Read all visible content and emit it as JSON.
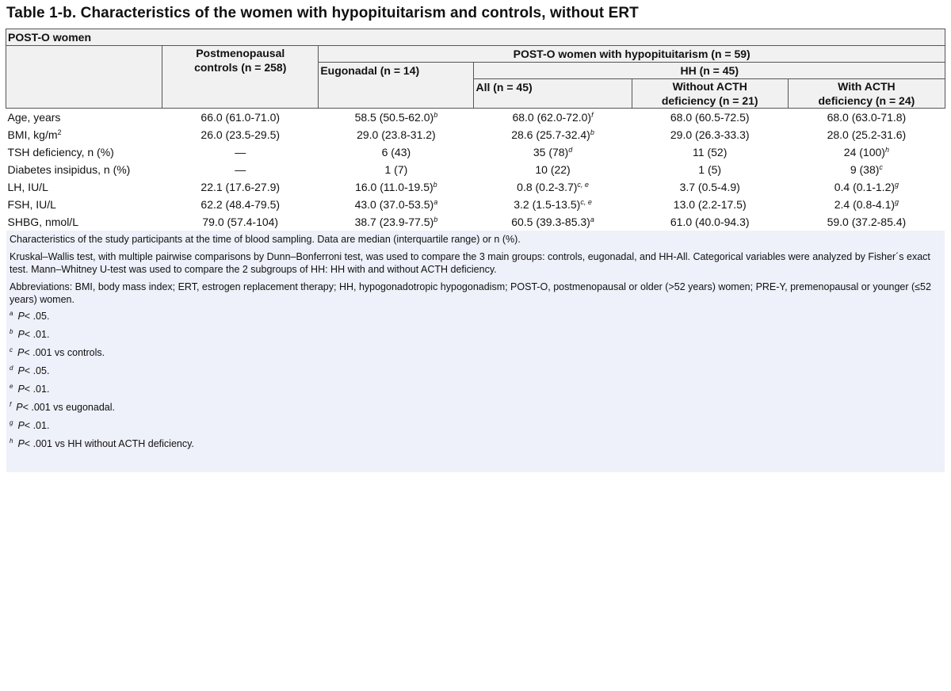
{
  "title": "Table 1-b. Characteristics of the women with hypopituitarism and controls, without ERT",
  "table": {
    "section": "POST-O women",
    "headers": {
      "controls": "Postmenopausal controls (n = 258)",
      "hypo_group": "POST-O women with hypopituitarism (n = 59)",
      "eugonadal": "Eugonadal (n = 14)",
      "hh": "HH (n = 45)",
      "all": "All (n = 45)",
      "without_acth": "Without ACTH deficiency (n = 21)",
      "with_acth": "With ACTH deficiency (n = 24)"
    },
    "rows": [
      {
        "label": "Age, years",
        "label_sup": "",
        "controls": "66.0 (61.0-71.0)",
        "controls_sup": "",
        "eugonadal": "58.5 (50.5-62.0)",
        "eugonadal_sup": "b",
        "all": "68.0 (62.0-72.0)",
        "all_sup": "f",
        "without": "68.0 (60.5-72.5)",
        "without_sup": "",
        "with": "68.0 (63.0-71.8)",
        "with_sup": ""
      },
      {
        "label": "BMI, kg/m",
        "label_sup": "2",
        "controls": "26.0 (23.5-29.5)",
        "controls_sup": "",
        "eugonadal": "29.0 (23.8-31.2)",
        "eugonadal_sup": "",
        "all": "28.6 (25.7-32.4)",
        "all_sup": "b",
        "without": "29.0 (26.3-33.3)",
        "without_sup": "",
        "with": "28.0 (25.2-31.6)",
        "with_sup": ""
      },
      {
        "label": "TSH deficiency, n (%)",
        "label_sup": "",
        "controls": "—",
        "controls_sup": "",
        "eugonadal": "6 (43)",
        "eugonadal_sup": "",
        "all": "35 (78)",
        "all_sup": "d",
        "without": "11 (52)",
        "without_sup": "",
        "with": "24 (100)",
        "with_sup": "h"
      },
      {
        "label": "Diabetes insipidus, n (%)",
        "label_sup": "",
        "controls": "—",
        "controls_sup": "",
        "eugonadal": "1 (7)",
        "eugonadal_sup": "",
        "all": "10 (22)",
        "all_sup": "",
        "without": "1 (5)",
        "without_sup": "",
        "with": "9 (38)",
        "with_sup": "c"
      },
      {
        "label": "LH, IU/L",
        "label_sup": "",
        "controls": "22.1 (17.6-27.9)",
        "controls_sup": "",
        "eugonadal": "16.0 (11.0-19.5)",
        "eugonadal_sup": "b",
        "all": "0.8 (0.2-3.7)",
        "all_sup": "c, e",
        "without": "3.7 (0.5-4.9)",
        "without_sup": "",
        "with": "0.4 (0.1-1.2)",
        "with_sup": "g"
      },
      {
        "label": "FSH, IU/L",
        "label_sup": "",
        "controls": "62.2 (48.4-79.5)",
        "controls_sup": "",
        "eugonadal": "43.0 (37.0-53.5)",
        "eugonadal_sup": "a",
        "all": "3.2 (1.5-13.5)",
        "all_sup": "c, e",
        "without": "13.0 (2.2-17.5)",
        "without_sup": "",
        "with": "2.4 (0.8-4.1)",
        "with_sup": "g"
      },
      {
        "label": "SHBG, nmol/L",
        "label_sup": "",
        "controls": "79.0 (57.4-104)",
        "controls_sup": "",
        "eugonadal": "38.7 (23.9-77.5)",
        "eugonadal_sup": "b",
        "all": "60.5 (39.3-85.3)",
        "all_sup": "a",
        "without": "61.0 (40.0-94.3)",
        "without_sup": "",
        "with": "59.0 (37.2-85.4)",
        "with_sup": ""
      }
    ]
  },
  "notes": {
    "characteristics": "Characteristics of the study participants at the time of blood sampling. Data are median (interquartile range) or n (%).",
    "methods": "Kruskal–Wallis test, with multiple pairwise comparisons by Dunn–Bonferroni test, was used to compare the 3 main groups: controls, eugonadal, and HH-All. Categorical variables were analyzed by Fisher´s exact test. Mann–Whitney U-test was used to compare the 2 subgroups of HH: HH with and without ACTH deficiency.",
    "abbreviations": "Abbreviations: BMI, body mass index; ERT, estrogen replacement therapy; HH, hypogonadotropic hypogonadism; POST-O, postmenopausal or older (>52 years) women; PRE-Y, premenopausal or younger (≤52 years) women.",
    "footnotes": [
      {
        "mark": "a",
        "p": "P",
        "text": "< .05."
      },
      {
        "mark": "b",
        "p": "P",
        "text": "< .01."
      },
      {
        "mark": "c",
        "p": "P",
        "text": "< .001 vs controls."
      },
      {
        "mark": "d",
        "p": "P",
        "text": "< .05."
      },
      {
        "mark": "e",
        "p": "P",
        "text": "< .01."
      },
      {
        "mark": "f",
        "p": "P",
        "text": "< .001 vs eugonadal."
      },
      {
        "mark": "g",
        "p": "P",
        "text": "< .01."
      },
      {
        "mark": "h",
        "p": "P",
        "text": "< .001 vs HH without ACTH deficiency."
      }
    ]
  },
  "colors": {
    "header_bg": "#f1f1f1",
    "notes_bg": "#eef0fa"
  }
}
